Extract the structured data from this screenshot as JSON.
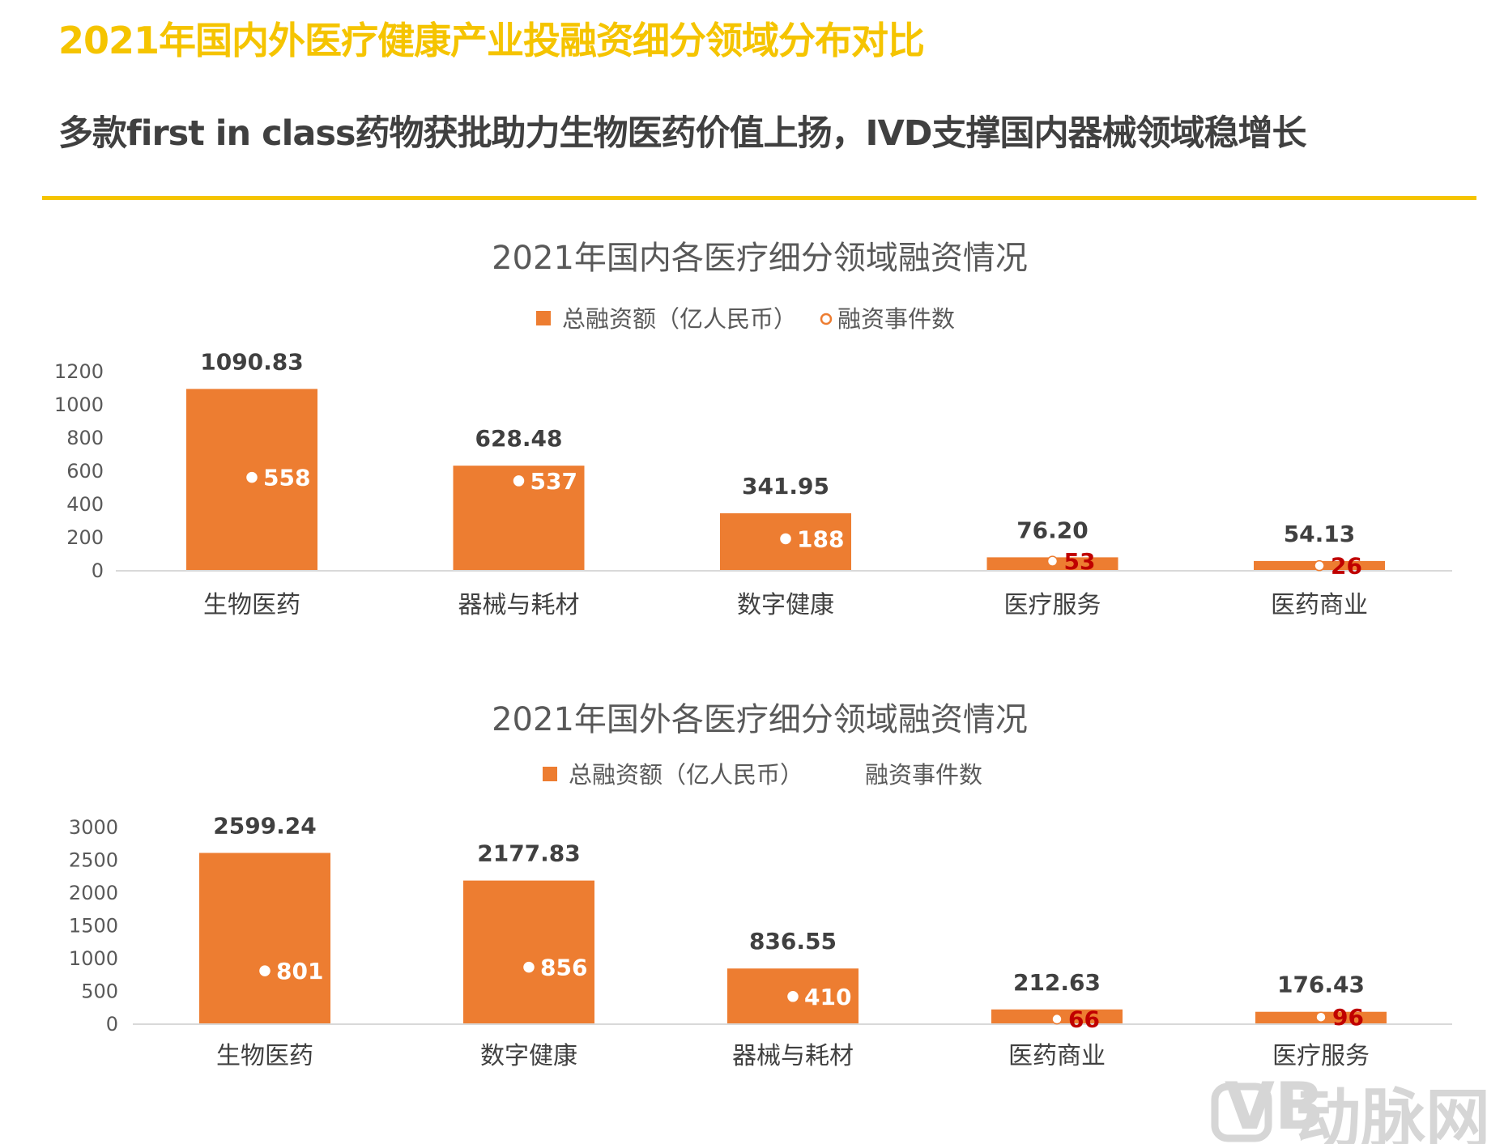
{
  "header": {
    "title": "2021年国内外医疗健康产业投融资细分领域分布对比",
    "subtitle": "多款first in class药物获批助力生物医药价值上扬，IVD支撑国内器械领域稳增长"
  },
  "colors": {
    "accent": "#f5c400",
    "bar": "#ed7d31",
    "small_label": "#c00000"
  },
  "watermark": "动脉网",
  "chart_data": [
    {
      "type": "bar",
      "title": "2021年国内各医疗细分领域融资情况",
      "legend": [
        "总融资额（亿人民币）",
        "融资事件数"
      ],
      "legend_placement": "top",
      "categories": [
        "生物医药",
        "器械与耗材",
        "数字健康",
        "医疗服务",
        "医药商业"
      ],
      "ylim": [
        0,
        1200
      ],
      "yticks": [
        0,
        200,
        400,
        600,
        800,
        1000,
        1200
      ],
      "series": [
        {
          "name": "总融资额（亿人民币）",
          "type": "bar",
          "values": [
            1090.83,
            628.48,
            341.95,
            76.2,
            54.13
          ],
          "labels": [
            "1090.83",
            "628.48",
            "341.95",
            "76.20",
            "54.13"
          ]
        },
        {
          "name": "融资事件数",
          "type": "scatter",
          "values": [
            558,
            537,
            188,
            53,
            26
          ]
        }
      ]
    },
    {
      "type": "bar",
      "title": "2021年国外各医疗细分领域融资情况",
      "legend": [
        "总融资额（亿人民币）",
        "融资事件数"
      ],
      "legend_placement": "top",
      "categories": [
        "生物医药",
        "数字健康",
        "器械与耗材",
        "医药商业",
        "医疗服务"
      ],
      "ylim": [
        0,
        3000
      ],
      "yticks": [
        0,
        500,
        1000,
        1500,
        2000,
        2500,
        3000
      ],
      "series": [
        {
          "name": "总融资额（亿人民币）",
          "type": "bar",
          "values": [
            2599.24,
            2177.83,
            836.55,
            212.63,
            176.43
          ],
          "labels": [
            "2599.24",
            "2177.83",
            "836.55",
            "212.63",
            "176.43"
          ]
        },
        {
          "name": "融资事件数",
          "type": "scatter",
          "values": [
            801,
            856,
            410,
            66,
            96
          ]
        }
      ]
    }
  ]
}
